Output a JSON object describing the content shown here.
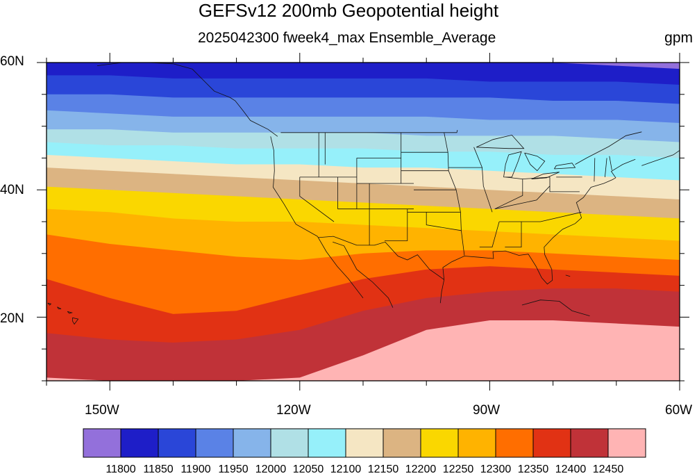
{
  "title": "GEFSv12 200mb Geopotential height",
  "subtitle": "2025042300 fweek4_max Ensemble_Average",
  "units": "gpm",
  "lat_labels": [
    "60N",
    "40N",
    "20N"
  ],
  "lon_labels": [
    "150W",
    "120W",
    "90W",
    "60W"
  ],
  "colorbar": {
    "levels": [
      "11800",
      "11850",
      "11900",
      "11950",
      "12000",
      "12050",
      "12100",
      "12150",
      "12200",
      "12250",
      "12300",
      "12350",
      "12400",
      "12450"
    ],
    "colors": [
      "#9370db",
      "#1e1ec8",
      "#2a46d8",
      "#5a82e6",
      "#86b4ea",
      "#b0e0e6",
      "#96f0fa",
      "#f5e6c3",
      "#dcb482",
      "#fad700",
      "#ffb300",
      "#ff6e00",
      "#e13214",
      "#c03238",
      "#ffb4b4"
    ]
  },
  "chart_data": {
    "type": "filled-contour map",
    "variable": "200mb Geopotential height",
    "units": "gpm",
    "lat_range": [
      10,
      60
    ],
    "lon_range": [
      -160,
      -60
    ],
    "contour_levels": [
      11800,
      11850,
      11900,
      11950,
      12000,
      12050,
      12100,
      12150,
      12200,
      12250,
      12300,
      12350,
      12400,
      12450
    ],
    "band_boundary_lats": {
      "lon": [
        -160,
        -150,
        -140,
        -130,
        -120,
        -110,
        -100,
        -90,
        -80,
        -70,
        -60
      ],
      "12450": [
        10.5,
        10.0,
        10.0,
        10.0,
        10.5,
        14.0,
        18.0,
        19.5,
        19.5,
        19.0,
        18.5
      ],
      "12400": [
        17.5,
        16.5,
        16.0,
        16.5,
        18.0,
        21.0,
        23.0,
        24.0,
        24.5,
        24.5,
        24.0
      ],
      "12350": [
        26.0,
        23.0,
        20.5,
        21.0,
        23.5,
        26.0,
        27.5,
        28.0,
        27.5,
        27.0,
        26.5
      ],
      "12300": [
        33.0,
        31.5,
        30.5,
        29.5,
        29.0,
        30.0,
        30.5,
        30.5,
        30.0,
        29.5,
        29.0
      ],
      "12250": [
        37.0,
        36.5,
        35.5,
        35.0,
        35.0,
        34.5,
        34.0,
        33.5,
        33.0,
        32.5,
        32.0
      ],
      "12200": [
        40.5,
        40.0,
        39.5,
        39.0,
        38.5,
        38.0,
        37.5,
        37.0,
        36.5,
        36.0,
        35.5
      ],
      "12150": [
        43.5,
        43.0,
        42.5,
        42.0,
        41.5,
        41.0,
        40.5,
        40.0,
        39.5,
        39.0,
        38.5
      ],
      "12100": [
        45.5,
        45.0,
        44.5,
        44.0,
        44.0,
        43.5,
        43.5,
        43.0,
        42.5,
        42.0,
        41.5
      ],
      "12050": [
        47.5,
        47.0,
        47.0,
        46.5,
        46.5,
        46.5,
        46.0,
        46.0,
        45.5,
        45.5,
        45.0
      ],
      "12000": [
        49.5,
        49.5,
        49.0,
        49.0,
        49.0,
        49.0,
        48.5,
        48.5,
        48.5,
        48.0,
        47.5
      ],
      "11950": [
        52.5,
        52.0,
        51.5,
        51.5,
        51.5,
        51.5,
        51.5,
        51.0,
        51.0,
        51.0,
        50.5
      ],
      "11900": [
        55.0,
        55.0,
        54.5,
        54.5,
        54.5,
        54.5,
        54.5,
        54.5,
        54.0,
        54.0,
        53.5
      ],
      "11850": [
        58.0,
        58.0,
        57.5,
        57.5,
        57.5,
        57.5,
        57.5,
        57.0,
        57.0,
        57.0,
        56.5
      ],
      "11800": [
        60.0,
        60.0,
        60.0,
        60.0,
        60.0,
        60.0,
        60.0,
        60.0,
        60.0,
        59.5,
        59.0
      ]
    }
  }
}
